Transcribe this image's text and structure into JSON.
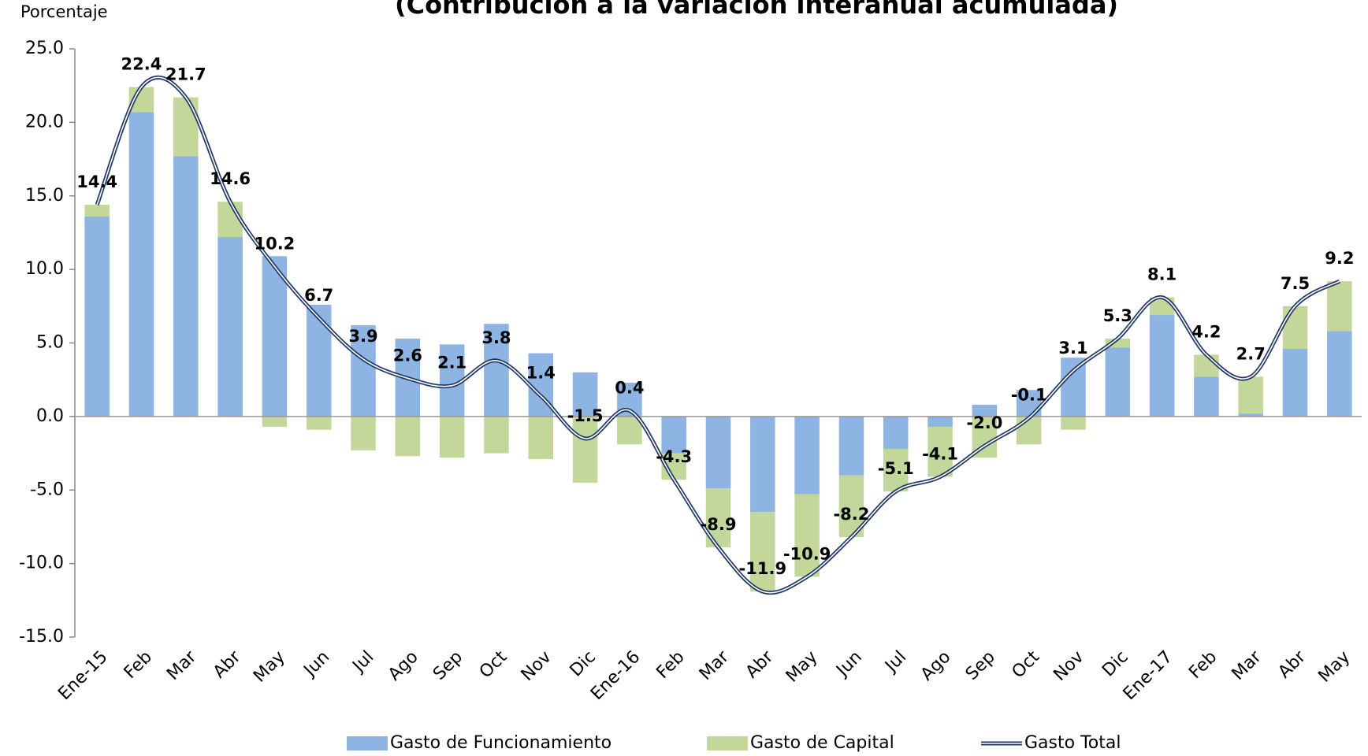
{
  "chart_data": {
    "type": "stacked_bar_line",
    "title": "(Contribución a la variación interanual acumulada)",
    "y_axis_label": "Porcentaje",
    "categories": [
      "Ene-15",
      "Feb",
      "Mar",
      "Abr",
      "May",
      "Jun",
      "Jul",
      "Ago",
      "Sep",
      "Oct",
      "Nov",
      "Dic",
      "Ene-16",
      "Feb",
      "Mar",
      "Abr",
      "May",
      "Jun",
      "Jul",
      "Ago",
      "Sep",
      "Oct",
      "Nov",
      "Dic",
      "Ene-17",
      "Feb",
      "Mar",
      "Abr",
      "May"
    ],
    "series": [
      {
        "name": "Gasto de Funcionamiento",
        "type": "bar",
        "color": "#8db4e2",
        "values": [
          13.6,
          20.7,
          17.7,
          12.2,
          10.9,
          7.6,
          6.2,
          5.3,
          4.9,
          6.3,
          4.3,
          3.0,
          2.3,
          -2.5,
          -4.9,
          -6.5,
          -5.3,
          -4.0,
          -2.2,
          -0.7,
          0.8,
          1.8,
          4.0,
          4.7,
          6.9,
          2.7,
          0.2,
          4.6,
          5.8
        ]
      },
      {
        "name": "Gasto de Capital",
        "type": "bar",
        "color": "#c4d79b",
        "values": [
          0.8,
          1.7,
          4.0,
          2.4,
          -0.7,
          -0.9,
          -2.3,
          -2.7,
          -2.8,
          -2.5,
          -2.9,
          -4.5,
          -1.9,
          -1.8,
          -4.0,
          -5.4,
          -5.6,
          -4.2,
          -2.9,
          -3.4,
          -2.8,
          -1.9,
          -0.9,
          0.6,
          1.2,
          1.5,
          2.5,
          2.9,
          3.4
        ]
      },
      {
        "name": "Gasto Total",
        "type": "line",
        "color": "#1f3864",
        "values": [
          14.4,
          22.4,
          21.7,
          14.6,
          10.2,
          6.7,
          3.9,
          2.6,
          2.1,
          3.8,
          1.4,
          -1.5,
          0.4,
          -4.3,
          -8.9,
          -11.9,
          -10.9,
          -8.2,
          -5.1,
          -4.1,
          -2.0,
          -0.1,
          3.1,
          5.3,
          8.1,
          4.2,
          2.7,
          7.5,
          9.2
        ],
        "value_labels": [
          "14.4",
          "22.4",
          "21.7",
          "14.6",
          "10.2",
          "6.7",
          "3.9",
          "2.6",
          "2.1",
          "3.8",
          "1.4",
          "-1.5",
          "0.4",
          "-4.3",
          "-8.9",
          "-11.9",
          "-10.9",
          "-8.2",
          "-5.1",
          "-4.1",
          "-2.0",
          "-0.1",
          "3.1",
          "5.3",
          "8.1",
          "4.2",
          "2.7",
          "7.5",
          "9.2"
        ]
      }
    ],
    "ylim": [
      -15,
      25
    ],
    "yticks": [
      {
        "value": -15,
        "label": "-15.0"
      },
      {
        "value": -10,
        "label": "-10.0"
      },
      {
        "value": -5,
        "label": "-5.0"
      },
      {
        "value": 0,
        "label": "0.0"
      },
      {
        "value": 5,
        "label": "5.0"
      },
      {
        "value": 10,
        "label": "10.0"
      },
      {
        "value": 15,
        "label": "15.0"
      },
      {
        "value": 20,
        "label": "20.0"
      },
      {
        "value": 25,
        "label": "25.0"
      }
    ],
    "grid": false,
    "legend": "bottom"
  }
}
